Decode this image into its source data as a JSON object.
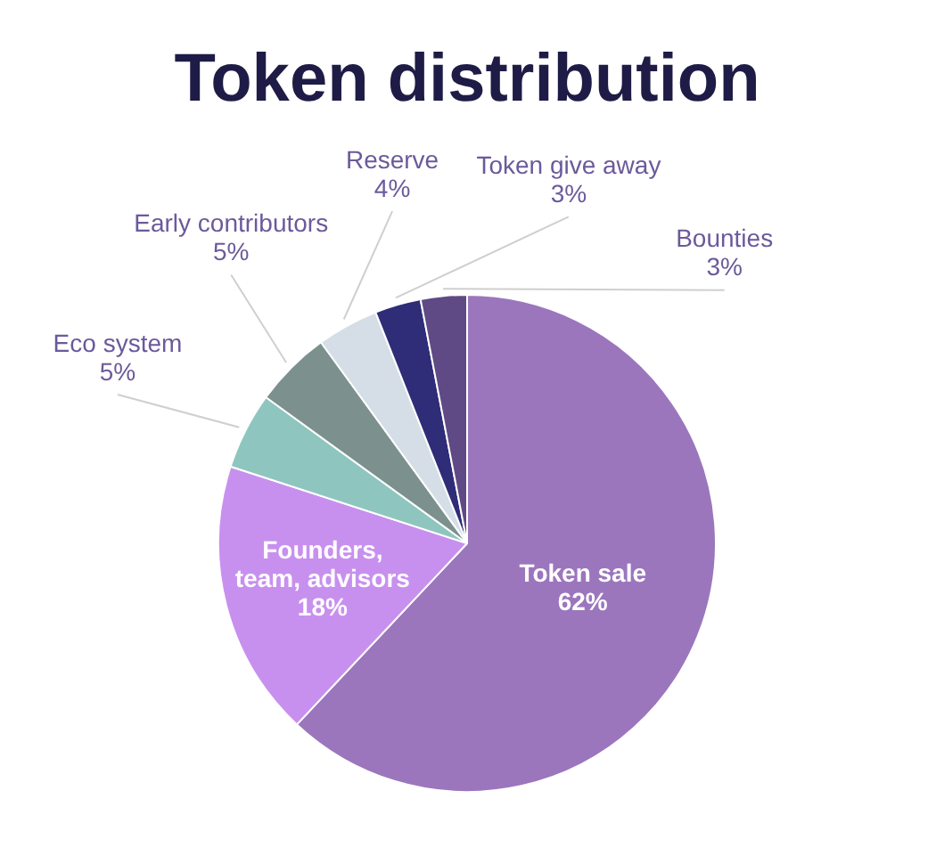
{
  "chart_data": {
    "type": "pie",
    "title": "Token distribution",
    "categories": [
      "Token sale",
      "Founders, team, advisors",
      "Eco system",
      "Early contributors",
      "Reserve",
      "Token give away",
      "Bounties"
    ],
    "values": [
      62,
      18,
      5,
      5,
      4,
      3,
      3
    ],
    "value_labels": [
      "62%",
      "18%",
      "5%",
      "5%",
      "4%",
      "3%",
      "3%"
    ],
    "colors": [
      "#9b76bd",
      "#c890ee",
      "#8ec6bf",
      "#7c918e",
      "#d5dee6",
      "#2f2c78",
      "#5f4a85"
    ],
    "legend": false
  }
}
